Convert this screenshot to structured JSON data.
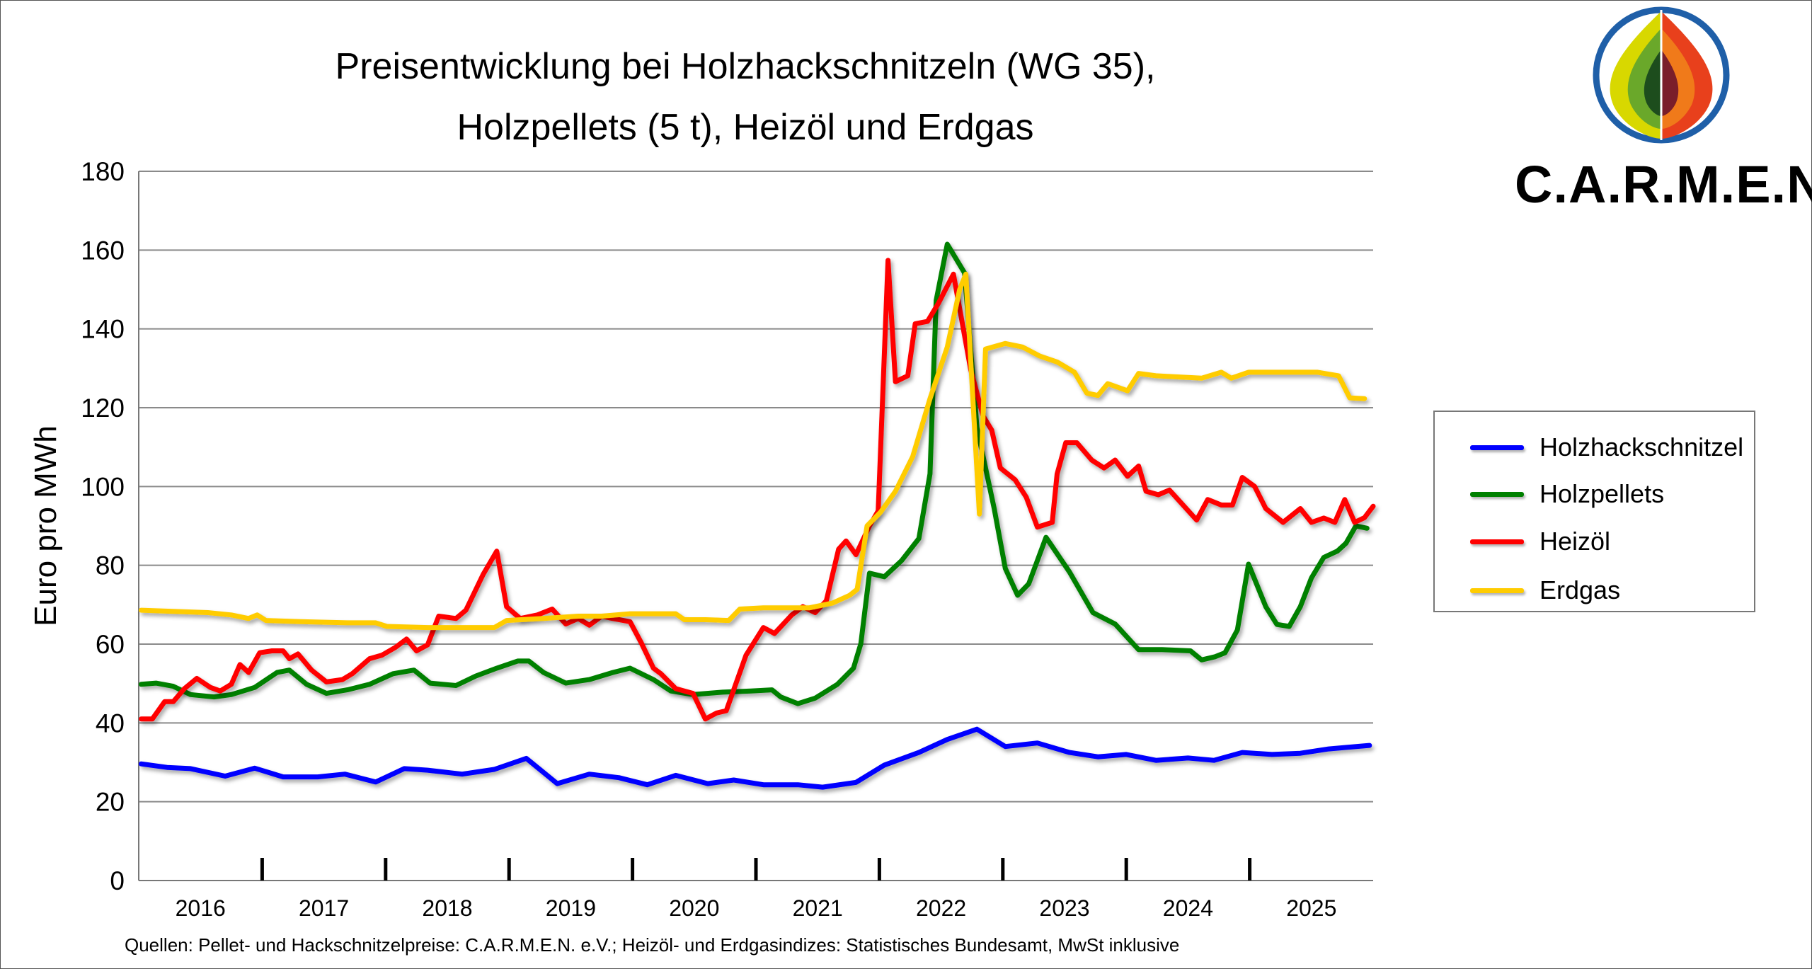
{
  "chart_data": {
    "type": "line",
    "title": [
      "Preisentwicklung bei Holzhackschnitzeln (WG 35),",
      "Holzpellets (5 t), Heizöl und Erdgas"
    ],
    "xlabel": "",
    "ylabel": "Euro pro MWh",
    "ylim": [
      0,
      180
    ],
    "yticks": [
      "0",
      "20",
      "40",
      "60",
      "80",
      "100",
      "120",
      "140",
      "160",
      "180"
    ],
    "xlim": [
      2016,
      2026
    ],
    "xtick_labels": [
      "2016",
      "2017",
      "2018",
      "2019",
      "2020",
      "2021",
      "2022",
      "2023",
      "2024",
      "2025"
    ],
    "grid": true,
    "legend_position": "right",
    "source": "Quellen: Pellet- und Hackschnitzelpreise: C.A.R.M.E.N. e.V.; Heizöl- und Erdgasindizes: Statistisches Bundesamt, MwSt inklusive",
    "series": [
      {
        "name": "Holzhackschnitzel",
        "color": "#0000ff",
        "points": [
          [
            2016.02,
            29.6
          ],
          [
            2016.23,
            28.7
          ],
          [
            2016.42,
            28.4
          ],
          [
            2016.7,
            26.5
          ],
          [
            2016.94,
            28.5
          ],
          [
            2017.17,
            26.3
          ],
          [
            2017.45,
            26.3
          ],
          [
            2017.67,
            27.0
          ],
          [
            2017.92,
            25.0
          ],
          [
            2018.15,
            28.4
          ],
          [
            2018.34,
            28.0
          ],
          [
            2018.62,
            27.0
          ],
          [
            2018.88,
            28.2
          ],
          [
            2019.14,
            31.0
          ],
          [
            2019.39,
            24.6
          ],
          [
            2019.65,
            27.0
          ],
          [
            2019.89,
            26.1
          ],
          [
            2020.12,
            24.3
          ],
          [
            2020.35,
            26.7
          ],
          [
            2020.61,
            24.6
          ],
          [
            2020.82,
            25.5
          ],
          [
            2021.06,
            24.3
          ],
          [
            2021.34,
            24.3
          ],
          [
            2021.54,
            23.7
          ],
          [
            2021.81,
            24.9
          ],
          [
            2022.04,
            29.3
          ],
          [
            2022.32,
            32.5
          ],
          [
            2022.55,
            35.8
          ],
          [
            2022.79,
            38.4
          ],
          [
            2023.02,
            34.0
          ],
          [
            2023.28,
            34.9
          ],
          [
            2023.54,
            32.5
          ],
          [
            2023.77,
            31.4
          ],
          [
            2024.0,
            32.0
          ],
          [
            2024.24,
            30.5
          ],
          [
            2024.5,
            31.1
          ],
          [
            2024.71,
            30.5
          ],
          [
            2024.94,
            32.5
          ],
          [
            2025.18,
            32.0
          ],
          [
            2025.41,
            32.3
          ],
          [
            2025.64,
            33.4
          ],
          [
            2025.97,
            34.3
          ]
        ]
      },
      {
        "name": "Holzpellets",
        "color": "#008000",
        "points": [
          [
            2016.02,
            49.8
          ],
          [
            2016.14,
            50.1
          ],
          [
            2016.28,
            49.3
          ],
          [
            2016.42,
            47.2
          ],
          [
            2016.61,
            46.6
          ],
          [
            2016.75,
            47.2
          ],
          [
            2016.94,
            49.0
          ],
          [
            2017.12,
            52.8
          ],
          [
            2017.22,
            53.4
          ],
          [
            2017.36,
            49.8
          ],
          [
            2017.52,
            47.5
          ],
          [
            2017.69,
            48.4
          ],
          [
            2017.87,
            49.8
          ],
          [
            2018.06,
            52.5
          ],
          [
            2018.23,
            53.4
          ],
          [
            2018.36,
            50.1
          ],
          [
            2018.57,
            49.5
          ],
          [
            2018.73,
            51.9
          ],
          [
            2018.9,
            53.9
          ],
          [
            2019.07,
            55.7
          ],
          [
            2019.16,
            55.7
          ],
          [
            2019.28,
            52.8
          ],
          [
            2019.46,
            50.1
          ],
          [
            2019.65,
            51.0
          ],
          [
            2019.84,
            52.8
          ],
          [
            2019.98,
            53.9
          ],
          [
            2020.17,
            51.0
          ],
          [
            2020.31,
            48.1
          ],
          [
            2020.49,
            47.2
          ],
          [
            2020.73,
            47.8
          ],
          [
            2020.96,
            48.1
          ],
          [
            2021.13,
            48.4
          ],
          [
            2021.2,
            46.6
          ],
          [
            2021.34,
            44.9
          ],
          [
            2021.48,
            46.3
          ],
          [
            2021.66,
            49.8
          ],
          [
            2021.79,
            53.9
          ],
          [
            2021.85,
            60.1
          ],
          [
            2021.92,
            78.0
          ],
          [
            2022.04,
            77.1
          ],
          [
            2022.18,
            81.2
          ],
          [
            2022.32,
            86.8
          ],
          [
            2022.41,
            103.2
          ],
          [
            2022.46,
            147.2
          ],
          [
            2022.55,
            161.5
          ],
          [
            2022.69,
            154.2
          ],
          [
            2022.79,
            115.0
          ],
          [
            2022.93,
            94.4
          ],
          [
            2023.02,
            79.2
          ],
          [
            2023.12,
            72.4
          ],
          [
            2023.21,
            75.3
          ],
          [
            2023.35,
            87.1
          ],
          [
            2023.54,
            78.3
          ],
          [
            2023.73,
            68.0
          ],
          [
            2023.91,
            65.1
          ],
          [
            2024.1,
            58.6
          ],
          [
            2024.29,
            58.6
          ],
          [
            2024.52,
            58.3
          ],
          [
            2024.61,
            56.0
          ],
          [
            2024.72,
            56.8
          ],
          [
            2024.8,
            57.8
          ],
          [
            2024.9,
            63.6
          ],
          [
            2024.99,
            80.3
          ],
          [
            2025.13,
            69.5
          ],
          [
            2025.22,
            65.0
          ],
          [
            2025.32,
            64.5
          ],
          [
            2025.41,
            69.5
          ],
          [
            2025.5,
            76.8
          ],
          [
            2025.6,
            82.0
          ],
          [
            2025.71,
            83.6
          ],
          [
            2025.78,
            85.6
          ],
          [
            2025.86,
            90.0
          ],
          [
            2025.95,
            89.4
          ]
        ]
      },
      {
        "name": "Heizöl",
        "color": "#ff0000",
        "points": [
          [
            2016.02,
            41.0
          ],
          [
            2016.11,
            41.0
          ],
          [
            2016.21,
            45.4
          ],
          [
            2016.28,
            45.4
          ],
          [
            2016.37,
            48.7
          ],
          [
            2016.47,
            51.3
          ],
          [
            2016.58,
            49.0
          ],
          [
            2016.66,
            48.1
          ],
          [
            2016.75,
            49.8
          ],
          [
            2016.82,
            54.8
          ],
          [
            2016.89,
            52.8
          ],
          [
            2016.98,
            57.8
          ],
          [
            2017.08,
            58.3
          ],
          [
            2017.17,
            58.3
          ],
          [
            2017.22,
            56.3
          ],
          [
            2017.29,
            57.5
          ],
          [
            2017.4,
            53.4
          ],
          [
            2017.52,
            50.4
          ],
          [
            2017.65,
            51.0
          ],
          [
            2017.73,
            52.5
          ],
          [
            2017.87,
            56.3
          ],
          [
            2017.97,
            57.2
          ],
          [
            2018.08,
            59.2
          ],
          [
            2018.17,
            61.3
          ],
          [
            2018.25,
            58.3
          ],
          [
            2018.34,
            59.8
          ],
          [
            2018.43,
            67.1
          ],
          [
            2018.57,
            66.5
          ],
          [
            2018.65,
            68.6
          ],
          [
            2018.79,
            77.7
          ],
          [
            2018.9,
            83.6
          ],
          [
            2018.98,
            69.5
          ],
          [
            2019.09,
            66.5
          ],
          [
            2019.23,
            67.4
          ],
          [
            2019.35,
            68.9
          ],
          [
            2019.46,
            65.1
          ],
          [
            2019.56,
            66.5
          ],
          [
            2019.65,
            64.8
          ],
          [
            2019.75,
            67.1
          ],
          [
            2019.84,
            66.5
          ],
          [
            2019.98,
            65.7
          ],
          [
            2020.07,
            60.4
          ],
          [
            2020.17,
            53.9
          ],
          [
            2020.23,
            52.5
          ],
          [
            2020.35,
            48.7
          ],
          [
            2020.49,
            47.5
          ],
          [
            2020.59,
            41.0
          ],
          [
            2020.68,
            42.5
          ],
          [
            2020.76,
            43.1
          ],
          [
            2020.92,
            57.2
          ],
          [
            2021.06,
            64.2
          ],
          [
            2021.15,
            62.7
          ],
          [
            2021.29,
            67.4
          ],
          [
            2021.38,
            69.5
          ],
          [
            2021.48,
            68.0
          ],
          [
            2021.57,
            71.0
          ],
          [
            2021.67,
            84.1
          ],
          [
            2021.73,
            86.2
          ],
          [
            2021.81,
            82.7
          ],
          [
            2021.92,
            90.0
          ],
          [
            2021.99,
            93.8
          ],
          [
            2022.07,
            157.4
          ],
          [
            2022.13,
            126.6
          ],
          [
            2022.23,
            128.1
          ],
          [
            2022.29,
            141.3
          ],
          [
            2022.39,
            141.9
          ],
          [
            2022.48,
            146.6
          ],
          [
            2022.6,
            153.9
          ],
          [
            2022.74,
            129.6
          ],
          [
            2022.84,
            117.9
          ],
          [
            2022.91,
            114.3
          ],
          [
            2022.98,
            104.7
          ],
          [
            2023.1,
            101.7
          ],
          [
            2023.19,
            97.3
          ],
          [
            2023.28,
            89.7
          ],
          [
            2023.4,
            90.9
          ],
          [
            2023.44,
            103.2
          ],
          [
            2023.51,
            111.1
          ],
          [
            2023.6,
            111.1
          ],
          [
            2023.72,
            106.7
          ],
          [
            2023.82,
            104.7
          ],
          [
            2023.91,
            106.7
          ],
          [
            2024.01,
            102.6
          ],
          [
            2024.1,
            105.2
          ],
          [
            2024.16,
            98.8
          ],
          [
            2024.26,
            97.9
          ],
          [
            2024.35,
            99.1
          ],
          [
            2024.57,
            91.5
          ],
          [
            2024.66,
            96.7
          ],
          [
            2024.77,
            95.3
          ],
          [
            2024.86,
            95.3
          ],
          [
            2024.94,
            102.3
          ],
          [
            2025.04,
            100.0
          ],
          [
            2025.13,
            94.4
          ],
          [
            2025.27,
            90.9
          ],
          [
            2025.41,
            94.4
          ],
          [
            2025.5,
            90.9
          ],
          [
            2025.6,
            92.0
          ],
          [
            2025.69,
            90.9
          ],
          [
            2025.77,
            96.7
          ],
          [
            2025.85,
            90.9
          ],
          [
            2025.93,
            92.1
          ],
          [
            2026.0,
            95.0
          ]
        ]
      },
      {
        "name": "Erdgas",
        "color": "#ffcc00",
        "points": [
          [
            2016.02,
            68.6
          ],
          [
            2016.28,
            68.3
          ],
          [
            2016.56,
            68.0
          ],
          [
            2016.75,
            67.4
          ],
          [
            2016.89,
            66.5
          ],
          [
            2016.96,
            67.4
          ],
          [
            2017.03,
            66.0
          ],
          [
            2017.31,
            65.7
          ],
          [
            2017.69,
            65.4
          ],
          [
            2017.92,
            65.4
          ],
          [
            2018.01,
            64.5
          ],
          [
            2018.34,
            64.2
          ],
          [
            2018.62,
            64.2
          ],
          [
            2018.88,
            64.2
          ],
          [
            2018.98,
            66.0
          ],
          [
            2019.28,
            66.5
          ],
          [
            2019.56,
            67.1
          ],
          [
            2019.75,
            67.1
          ],
          [
            2019.98,
            67.7
          ],
          [
            2020.35,
            67.7
          ],
          [
            2020.42,
            66.2
          ],
          [
            2020.59,
            66.2
          ],
          [
            2020.78,
            66.0
          ],
          [
            2020.87,
            68.9
          ],
          [
            2021.06,
            69.2
          ],
          [
            2021.43,
            69.2
          ],
          [
            2021.62,
            70.4
          ],
          [
            2021.76,
            72.4
          ],
          [
            2021.82,
            73.9
          ],
          [
            2021.9,
            90.0
          ],
          [
            2022.01,
            93.5
          ],
          [
            2022.13,
            98.8
          ],
          [
            2022.27,
            107.6
          ],
          [
            2022.41,
            122.3
          ],
          [
            2022.55,
            135.4
          ],
          [
            2022.65,
            150.0
          ],
          [
            2022.7,
            153.9
          ],
          [
            2022.81,
            93.0
          ],
          [
            2022.86,
            134.9
          ],
          [
            2023.02,
            136.3
          ],
          [
            2023.16,
            135.4
          ],
          [
            2023.3,
            133.1
          ],
          [
            2023.44,
            131.6
          ],
          [
            2023.58,
            129.0
          ],
          [
            2023.68,
            123.7
          ],
          [
            2023.77,
            123.1
          ],
          [
            2023.85,
            126.1
          ],
          [
            2024.01,
            124.3
          ],
          [
            2024.1,
            128.7
          ],
          [
            2024.24,
            128.1
          ],
          [
            2024.43,
            127.8
          ],
          [
            2024.61,
            127.5
          ],
          [
            2024.77,
            129.0
          ],
          [
            2024.85,
            127.5
          ],
          [
            2024.99,
            129.0
          ],
          [
            2025.18,
            129.0
          ],
          [
            2025.55,
            129.0
          ],
          [
            2025.72,
            128.1
          ],
          [
            2025.81,
            122.5
          ],
          [
            2025.93,
            122.3
          ]
        ]
      }
    ]
  },
  "logo": {
    "text": "C.A.R.M.E.N."
  }
}
